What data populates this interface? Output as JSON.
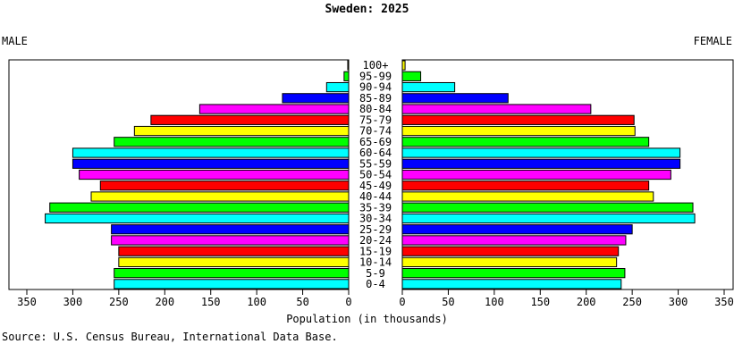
{
  "chart_data": {
    "type": "bar",
    "title": "Sweden: 2025",
    "left_label": "MALE",
    "right_label": "FEMALE",
    "xlabel": "Population (in thousands)",
    "source": "Source: U.S. Census Bureau, International Data Base.",
    "xlim": [
      0,
      350
    ],
    "xticks": [
      "350",
      "300",
      "250",
      "200",
      "150",
      "100",
      "50",
      "0",
      "0",
      "50",
      "100",
      "150",
      "200",
      "250",
      "300",
      "350"
    ],
    "categories": [
      "100+",
      "95-99",
      "90-94",
      "85-89",
      "80-84",
      "75-79",
      "70-74",
      "65-69",
      "60-64",
      "55-59",
      "50-54",
      "45-49",
      "40-44",
      "35-39",
      "30-34",
      "25-29",
      "20-24",
      "15-19",
      "10-14",
      "5-9",
      "0-4"
    ],
    "series": [
      {
        "values": [
          1,
          5,
          24,
          72,
          162,
          215,
          233,
          255,
          300,
          300,
          293,
          270,
          280,
          325,
          330,
          258,
          258,
          250,
          250,
          255,
          255
        ]
      },
      {
        "values": [
          3,
          20,
          57,
          115,
          205,
          252,
          253,
          268,
          302,
          302,
          292,
          268,
          273,
          316,
          318,
          250,
          243,
          235,
          233,
          242,
          238
        ]
      }
    ],
    "colors": [
      "#ffff00",
      "#00ff00",
      "#00ffff",
      "#0000ff",
      "#ff00ff",
      "#ff0000",
      "#ffff00",
      "#00ff00",
      "#00ffff",
      "#0000ff",
      "#ff00ff",
      "#ff0000",
      "#ffff00",
      "#00ff00",
      "#00ffff",
      "#0000ff",
      "#ff00ff",
      "#ff0000",
      "#ffff00",
      "#00ff00",
      "#00ffff"
    ]
  }
}
